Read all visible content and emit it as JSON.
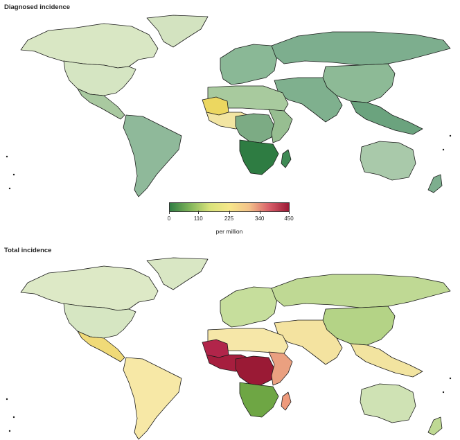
{
  "panels": {
    "top": {
      "title": "Diagnosed incidence",
      "regions": [
        {
          "name": "north-america-canada",
          "color": "#d9e7c4"
        },
        {
          "name": "usa",
          "color": "#d5e5c2"
        },
        {
          "name": "mexico-central-america",
          "color": "#a9c9a0"
        },
        {
          "name": "south-america",
          "color": "#8fb99a"
        },
        {
          "name": "greenland",
          "color": "#d3e3c0"
        },
        {
          "name": "europe",
          "color": "#8ab896"
        },
        {
          "name": "russia-north-asia",
          "color": "#7dae8e"
        },
        {
          "name": "mongolia",
          "color": "#3d8b5a"
        },
        {
          "name": "china",
          "color": "#8dba96"
        },
        {
          "name": "middle-east-south-asia",
          "color": "#7fb08e"
        },
        {
          "name": "southeast-asia",
          "color": "#6ba37e"
        },
        {
          "name": "north-africa",
          "color": "#a8ca9e"
        },
        {
          "name": "mauritania-mali",
          "color": "#ecd760"
        },
        {
          "name": "west-africa",
          "color": "#f2e5a2"
        },
        {
          "name": "central-africa",
          "color": "#7cab84"
        },
        {
          "name": "east-africa",
          "color": "#97be91"
        },
        {
          "name": "southern-africa",
          "color": "#2e7c42"
        },
        {
          "name": "madagascar",
          "color": "#3f8a55"
        },
        {
          "name": "australia",
          "color": "#a9c9aa"
        },
        {
          "name": "new-zealand",
          "color": "#7dae8e"
        }
      ]
    },
    "bottom": {
      "title": "Total incidence",
      "regions": [
        {
          "name": "north-america-canada",
          "color": "#dde9c6"
        },
        {
          "name": "usa",
          "color": "#d6e6c2"
        },
        {
          "name": "mexico-central-america",
          "color": "#f0da78"
        },
        {
          "name": "south-america",
          "color": "#f7e8a6"
        },
        {
          "name": "greenland",
          "color": "#d9e7c4"
        },
        {
          "name": "europe",
          "color": "#c6de9c"
        },
        {
          "name": "russia-north-asia",
          "color": "#bfd994"
        },
        {
          "name": "mongolia",
          "color": "#a9cd80"
        },
        {
          "name": "china",
          "color": "#b4d386"
        },
        {
          "name": "middle-east-south-asia",
          "color": "#f4e3a0"
        },
        {
          "name": "southeast-asia",
          "color": "#f2e4a0"
        },
        {
          "name": "north-africa",
          "color": "#f6e7a8"
        },
        {
          "name": "mauritania-mali",
          "color": "#b1254a"
        },
        {
          "name": "west-africa",
          "color": "#a61e3e"
        },
        {
          "name": "central-africa",
          "color": "#9a1a35"
        },
        {
          "name": "east-africa",
          "color": "#eaa080"
        },
        {
          "name": "southern-africa",
          "color": "#6ea644"
        },
        {
          "name": "madagascar",
          "color": "#ee9a7c"
        },
        {
          "name": "australia",
          "color": "#cfe2b4"
        },
        {
          "name": "new-zealand",
          "color": "#bfd994"
        }
      ]
    }
  },
  "legend": {
    "unit": "per million",
    "ticks": [
      {
        "label": "0",
        "value": 0
      },
      {
        "label": "110",
        "value": 110
      },
      {
        "label": "225",
        "value": 225
      },
      {
        "label": "340",
        "value": 340
      },
      {
        "label": "450",
        "value": 450
      }
    ],
    "scale": {
      "min": 0,
      "max": 450
    },
    "colors": [
      "#2f7d43",
      "#7fb45a",
      "#d8e27a",
      "#f6e78a",
      "#f3c28a",
      "#d9606a",
      "#9b1935"
    ]
  }
}
